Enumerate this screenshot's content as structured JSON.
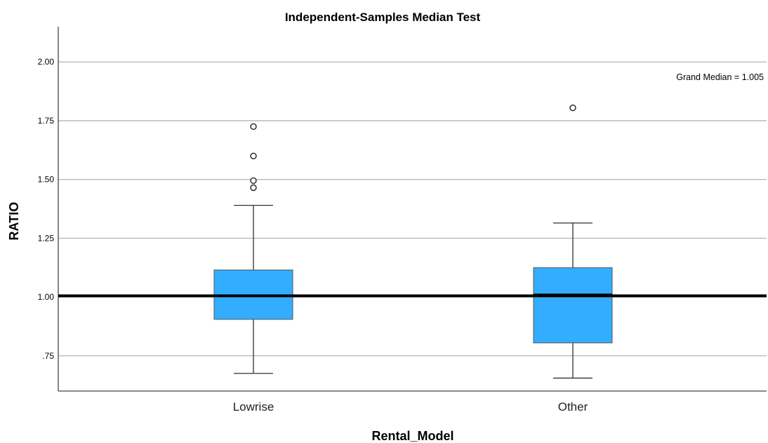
{
  "colors": {
    "box_fill": "#33adff",
    "box_stroke": "#555555",
    "grid": "#b4b4b4",
    "axis": "#444444",
    "grand_median_line": "#000000",
    "outlier_stroke": "#222222"
  },
  "chart_data": {
    "type": "boxplot",
    "title": "Independent-Samples Median Test",
    "xlabel": "Rental_Model",
    "ylabel": "RATIO",
    "ylim": [
      0.6,
      2.15
    ],
    "y_ticks": [
      0.75,
      1.0,
      1.25,
      1.5,
      1.75,
      2.0
    ],
    "y_tick_labels": [
      ".75",
      "1.00",
      "1.25",
      "1.50",
      "1.75",
      "2.00"
    ],
    "grid": "horizontal",
    "categories": [
      "Lowrise",
      "Other"
    ],
    "boxes": [
      {
        "category": "Lowrise",
        "whisker_low": 0.675,
        "q1": 0.905,
        "median": 1.005,
        "q3": 1.115,
        "whisker_high": 1.39,
        "outliers": [
          1.465,
          1.495,
          1.6,
          1.725
        ]
      },
      {
        "category": "Other",
        "whisker_low": 0.655,
        "q1": 0.805,
        "median": 1.01,
        "q3": 1.125,
        "whisker_high": 1.315,
        "outliers": [
          1.805
        ]
      }
    ],
    "grand_median": 1.005,
    "annotation": "Grand Median = 1.005"
  }
}
